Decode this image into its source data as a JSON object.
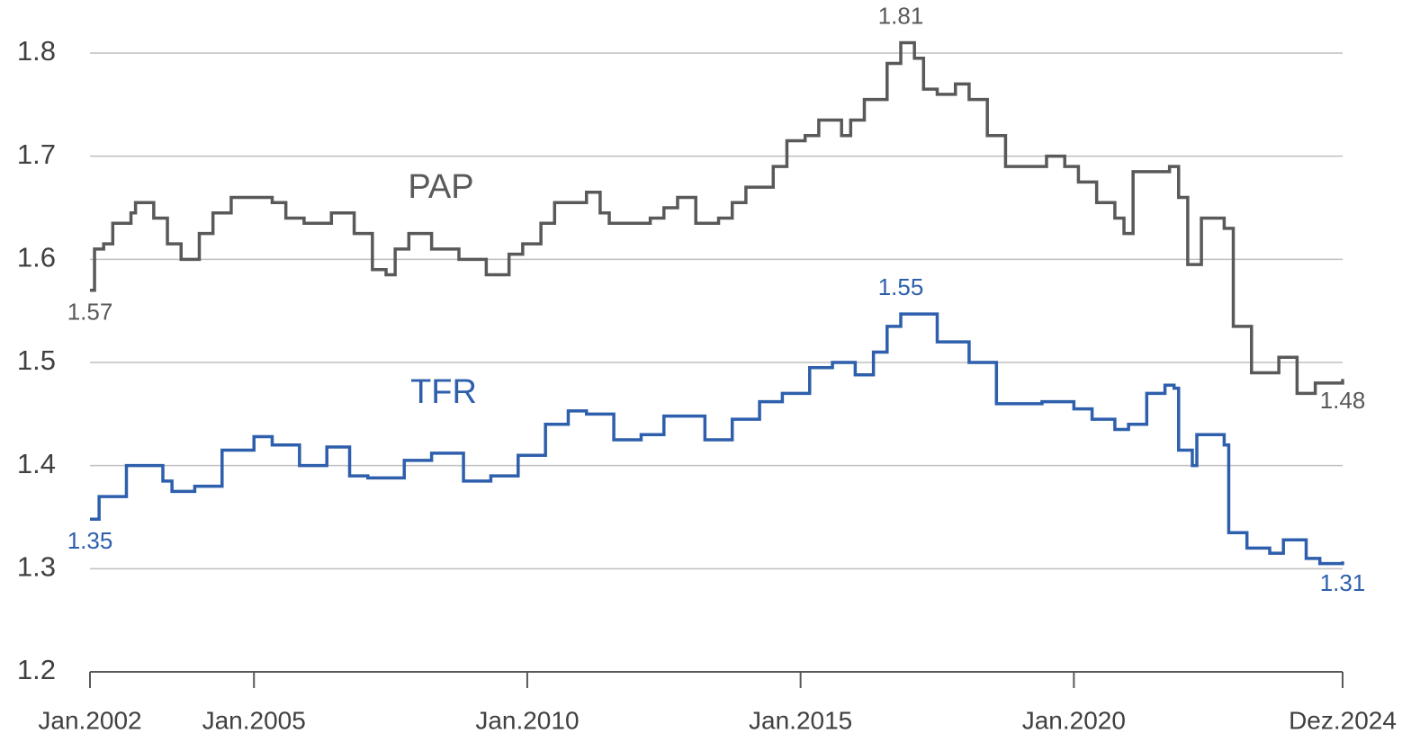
{
  "chart_data": {
    "type": "line",
    "step": true,
    "xlim": [
      "2002-01",
      "2024-12"
    ],
    "xticks": [
      {
        "value": "2002-01",
        "label": "Jan.2002"
      },
      {
        "value": "2005-01",
        "label": "Jan.2005"
      },
      {
        "value": "2010-01",
        "label": "Jan.2010"
      },
      {
        "value": "2015-01",
        "label": "Jan.2015"
      },
      {
        "value": "2020-01",
        "label": "Jan.2020"
      },
      {
        "value": "2024-12",
        "label": "Dez.2024"
      }
    ],
    "ylim": [
      1.2,
      1.8
    ],
    "yticks": [
      1.2,
      1.3,
      1.4,
      1.5,
      1.6,
      1.7,
      1.8
    ],
    "grid": true,
    "series": [
      {
        "name": "PAP",
        "color": "#595959",
        "x": [
          "2002-01",
          "2002-02",
          "2002-04",
          "2002-06",
          "2002-10",
          "2002-11",
          "2003-03",
          "2003-06",
          "2003-09",
          "2004-01",
          "2004-04",
          "2004-08",
          "2005-05",
          "2005-08",
          "2005-12",
          "2006-06",
          "2006-11",
          "2007-03",
          "2007-06",
          "2007-08",
          "2007-11",
          "2008-04",
          "2008-10",
          "2009-04",
          "2009-09",
          "2009-12",
          "2010-04",
          "2010-07",
          "2011-02",
          "2011-05",
          "2011-07",
          "2012-04",
          "2012-07",
          "2012-10",
          "2013-02",
          "2013-07",
          "2013-10",
          "2014-01",
          "2014-07",
          "2014-10",
          "2015-02",
          "2015-05",
          "2015-10",
          "2015-12",
          "2016-03",
          "2016-08",
          "2016-11",
          "2017-02",
          "2017-04",
          "2017-07",
          "2017-11",
          "2018-02",
          "2018-06",
          "2018-10",
          "2019-04",
          "2019-07",
          "2019-11",
          "2020-02",
          "2020-06",
          "2020-10",
          "2020-12",
          "2021-02",
          "2021-10",
          "2021-12",
          "2022-02",
          "2022-05",
          "2022-10",
          "2022-12",
          "2023-04",
          "2023-10",
          "2024-02",
          "2024-06",
          "2024-12"
        ],
        "values": [
          1.57,
          1.61,
          1.615,
          1.635,
          1.645,
          1.655,
          1.64,
          1.615,
          1.6,
          1.625,
          1.645,
          1.66,
          1.655,
          1.64,
          1.635,
          1.645,
          1.625,
          1.59,
          1.585,
          1.61,
          1.625,
          1.61,
          1.6,
          1.585,
          1.605,
          1.615,
          1.635,
          1.655,
          1.665,
          1.645,
          1.635,
          1.64,
          1.65,
          1.66,
          1.635,
          1.64,
          1.655,
          1.67,
          1.69,
          1.715,
          1.72,
          1.735,
          1.72,
          1.735,
          1.755,
          1.79,
          1.81,
          1.795,
          1.765,
          1.76,
          1.77,
          1.755,
          1.72,
          1.69,
          1.69,
          1.7,
          1.69,
          1.675,
          1.655,
          1.64,
          1.625,
          1.685,
          1.69,
          1.66,
          1.595,
          1.64,
          1.63,
          1.535,
          1.49,
          1.505,
          1.47,
          1.48,
          1.484
        ],
        "value_labels": [
          "1.57",
          null,
          null,
          null,
          null,
          null,
          null,
          null,
          null,
          null,
          null,
          null,
          null,
          null,
          null,
          null,
          null,
          null,
          null,
          null,
          null,
          null,
          null,
          null,
          null,
          null,
          null,
          null,
          null,
          null,
          null,
          null,
          null,
          null,
          null,
          null,
          null,
          null,
          null,
          null,
          null,
          null,
          null,
          null,
          null,
          null,
          "1.81",
          null,
          null,
          null,
          null,
          null,
          null,
          null,
          null,
          null,
          null,
          null,
          null,
          null,
          null,
          null,
          null,
          null,
          null,
          null,
          null,
          null,
          null,
          null,
          null,
          null,
          "1.48"
        ]
      },
      {
        "name": "TFR",
        "color": "#2e5fac",
        "x": [
          "2002-01",
          "2002-03",
          "2002-09",
          "2003-01",
          "2003-05",
          "2003-07",
          "2003-12",
          "2004-06",
          "2005-01",
          "2005-05",
          "2005-11",
          "2006-02",
          "2006-05",
          "2006-10",
          "2007-02",
          "2007-10",
          "2008-04",
          "2008-11",
          "2009-05",
          "2009-11",
          "2010-05",
          "2010-10",
          "2011-02",
          "2011-08",
          "2012-02",
          "2012-07",
          "2013-04",
          "2013-10",
          "2014-04",
          "2014-09",
          "2015-03",
          "2015-08",
          "2016-01",
          "2016-05",
          "2016-08",
          "2016-11",
          "2017-07",
          "2018-02",
          "2018-08",
          "2019-06",
          "2020-01",
          "2020-05",
          "2020-10",
          "2021-01",
          "2021-05",
          "2021-09",
          "2021-11",
          "2021-12",
          "2022-03",
          "2022-04",
          "2022-10",
          "2022-11",
          "2023-03",
          "2023-08",
          "2023-11",
          "2024-04",
          "2024-07",
          "2024-12"
        ],
        "values": [
          1.348,
          1.37,
          1.4,
          1.4,
          1.385,
          1.375,
          1.38,
          1.415,
          1.428,
          1.42,
          1.4,
          1.4,
          1.418,
          1.39,
          1.388,
          1.405,
          1.412,
          1.385,
          1.39,
          1.41,
          1.44,
          1.453,
          1.45,
          1.425,
          1.43,
          1.448,
          1.425,
          1.445,
          1.462,
          1.47,
          1.495,
          1.5,
          1.488,
          1.51,
          1.535,
          1.547,
          1.52,
          1.5,
          1.46,
          1.462,
          1.455,
          1.445,
          1.435,
          1.44,
          1.47,
          1.478,
          1.475,
          1.415,
          1.4,
          1.43,
          1.42,
          1.335,
          1.32,
          1.315,
          1.328,
          1.31,
          1.305,
          1.307
        ],
        "value_labels": [
          "1.35",
          null,
          null,
          null,
          null,
          null,
          null,
          null,
          null,
          null,
          null,
          null,
          null,
          null,
          null,
          null,
          null,
          null,
          null,
          null,
          null,
          null,
          null,
          null,
          null,
          null,
          null,
          null,
          null,
          null,
          null,
          null,
          null,
          null,
          null,
          "1.55",
          null,
          null,
          null,
          null,
          null,
          null,
          null,
          null,
          null,
          null,
          null,
          null,
          null,
          null,
          null,
          null,
          null,
          null,
          null,
          null,
          null,
          "1.31"
        ]
      }
    ]
  }
}
